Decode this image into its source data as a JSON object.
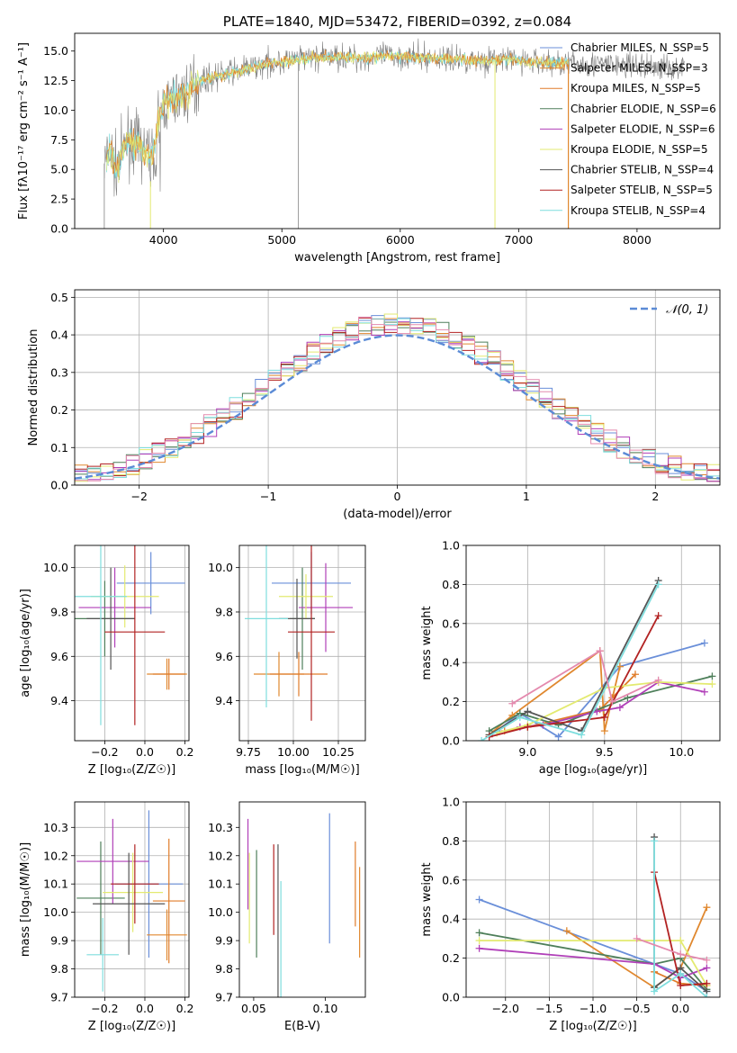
{
  "colors": {
    "series": [
      "#6a8fd9",
      "#e0882f",
      "#e07c2a",
      "#4e7f5a",
      "#b03fb8",
      "#e3ea70",
      "#555555",
      "#b22222",
      "#7fdede"
    ],
    "grid": "#b0b0b0",
    "normal": "#5b8bd6",
    "pink": "#e48aae"
  },
  "chart_data": [
    {
      "id": "spectrum",
      "type": "line",
      "title": "PLATE=1840, MJD=53472, FIBERID=0392, z=0.084",
      "xlabel": "wavelength [Angstrom, rest frame]",
      "ylabel": "Flux [fλ10⁻¹⁷ erg cm⁻² s⁻¹ A⁻¹]",
      "xlim": [
        3250,
        8700
      ],
      "ylim": [
        0,
        16.5
      ],
      "xticks": [
        4000,
        5000,
        6000,
        7000,
        8000
      ],
      "yticks": [
        0.0,
        2.5,
        5.0,
        7.5,
        10.0,
        12.5,
        15.0
      ],
      "grid": false,
      "legend_position": "top-right",
      "legend": [
        "Chabrier MILES, N_SSP=5",
        "Salpeter MILES, N_SSP=3",
        "Kroupa MILES, N_SSP=5",
        "Chabrier ELODIE, N_SSP=6",
        "Salpeter ELODIE, N_SSP=6",
        "Kroupa ELODIE, N_SSP=5",
        "Chabrier STELIB, N_SSP=4",
        "Salpeter STELIB, N_SSP=5",
        "Kroupa STELIB, N_SSP=4"
      ],
      "observed_envelope": {
        "x": [
          3500,
          3550,
          3600,
          3700,
          3800,
          3900,
          3950,
          4000,
          4100,
          4200,
          4300,
          4500,
          4700,
          4900,
          5100,
          5300,
          5500,
          5700,
          5900,
          6100,
          6300,
          6500,
          6700,
          6900,
          7100,
          7300,
          7500,
          7700,
          7900,
          8100,
          8300,
          8400
        ],
        "y": [
          5.5,
          6.5,
          5.0,
          7.5,
          7.0,
          6.0,
          8.5,
          10.5,
          11.0,
          11.5,
          12.5,
          13.0,
          13.5,
          14.0,
          14.2,
          14.5,
          14.5,
          14.4,
          14.6,
          14.5,
          14.4,
          14.3,
          14.2,
          14.3,
          14.1,
          14.0,
          13.9,
          13.9,
          13.8,
          13.7,
          13.6,
          13.7
        ]
      }
    },
    {
      "id": "residual-histogram",
      "type": "line",
      "xlabel": "(data-model)/error",
      "ylabel": "Normed distribution",
      "xlim": [
        -2.5,
        2.5
      ],
      "ylim": [
        0,
        0.52
      ],
      "xticks": [
        -2,
        -1,
        0,
        1,
        2
      ],
      "yticks": [
        0.0,
        0.1,
        0.2,
        0.3,
        0.4,
        0.5
      ],
      "grid": true,
      "legend_position": "top-right",
      "legend": [
        "𝒩(0, 1)"
      ]
    },
    {
      "id": "age-vs-z",
      "type": "scatter",
      "xlabel": "Z [log₁₀(Z/Z☉)]",
      "ylabel": "age  [log₁₀(age/yr)]",
      "xlim": [
        -0.35,
        0.22
      ],
      "ylim": [
        9.22,
        10.1
      ],
      "xticks": [
        -0.2,
        0.0,
        0.2
      ],
      "yticks": [
        9.4,
        9.6,
        9.8,
        10.0
      ],
      "grid": true,
      "points": [
        {
          "x": 0.03,
          "y": 9.93,
          "xerr": 0.17,
          "yerr": 0.14
        },
        {
          "x": 0.11,
          "y": 9.52,
          "xerr": 0.1,
          "yerr": 0.07
        },
        {
          "x": 0.12,
          "y": 9.52,
          "xerr": 0.08,
          "yerr": 0.07
        },
        {
          "x": -0.2,
          "y": 9.77,
          "xerr": 0.15,
          "yerr": 0.17
        },
        {
          "x": -0.15,
          "y": 9.82,
          "xerr": 0.18,
          "yerr": 0.18
        },
        {
          "x": -0.1,
          "y": 9.87,
          "xerr": 0.17,
          "yerr": 0.14
        },
        {
          "x": -0.17,
          "y": 9.77,
          "xerr": 0.12,
          "yerr": 0.23
        },
        {
          "x": -0.05,
          "y": 9.71,
          "xerr": 0.15,
          "yerr": 0.42
        },
        {
          "x": -0.22,
          "y": 9.87,
          "xerr": 0.13,
          "yerr": 0.58
        }
      ]
    },
    {
      "id": "age-vs-mass",
      "type": "scatter",
      "xlabel": "mass [log₁₀(M/M☉)]",
      "ylabel": "",
      "xlim": [
        9.7,
        10.4
      ],
      "ylim": [
        9.22,
        10.1
      ],
      "xticks": [
        9.75,
        10.0,
        10.25
      ],
      "yticks": [
        9.4,
        9.6,
        9.8,
        10.0
      ],
      "grid": true,
      "points": [
        {
          "x": 10.1,
          "y": 9.93,
          "xerr": 0.22,
          "yerr": 0.14
        },
        {
          "x": 9.92,
          "y": 9.52,
          "xerr": 0.14,
          "yerr": 0.1
        },
        {
          "x": 10.03,
          "y": 9.52,
          "xerr": 0.16,
          "yerr": 0.1
        },
        {
          "x": 10.05,
          "y": 9.77,
          "xerr": 0.07,
          "yerr": 0.23
        },
        {
          "x": 10.18,
          "y": 9.82,
          "xerr": 0.15,
          "yerr": 0.2
        },
        {
          "x": 10.07,
          "y": 9.87,
          "xerr": 0.15,
          "yerr": 0.1
        },
        {
          "x": 10.02,
          "y": 9.77,
          "xerr": 0.1,
          "yerr": 0.18
        },
        {
          "x": 10.1,
          "y": 9.71,
          "xerr": 0.13,
          "yerr": 0.4
        },
        {
          "x": 9.85,
          "y": 9.77,
          "xerr": 0.12,
          "yerr": 0.4
        }
      ]
    },
    {
      "id": "weight-vs-age",
      "type": "line",
      "xlabel": "age  [log₁₀(age/yr)]",
      "ylabel": "mass weight",
      "xlim": [
        8.6,
        10.25
      ],
      "ylim": [
        0,
        1.0
      ],
      "xticks": [
        9.0,
        9.5,
        10.0
      ],
      "yticks": [
        0.0,
        0.2,
        0.4,
        0.6,
        0.8,
        1.0
      ],
      "grid": true,
      "series": [
        {
          "x": [
            8.8,
            8.95,
            9.2,
            9.6,
            10.15
          ],
          "y": [
            0.05,
            0.14,
            0.02,
            0.38,
            0.5
          ]
        },
        {
          "x": [
            8.75,
            8.9,
            9.47,
            9.5,
            9.6
          ],
          "y": [
            0.03,
            0.13,
            0.46,
            0.05,
            0.38
          ]
        },
        {
          "x": [
            8.85,
            9.0,
            9.47,
            9.55,
            9.7
          ],
          "y": [
            0.05,
            0.07,
            0.16,
            0.22,
            0.34
          ]
        },
        {
          "x": [
            8.75,
            8.95,
            9.2,
            9.65,
            10.2
          ],
          "y": [
            0.05,
            0.14,
            0.08,
            0.22,
            0.33
          ]
        },
        {
          "x": [
            8.95,
            9.1,
            9.45,
            9.6,
            9.85,
            10.15
          ],
          "y": [
            0.07,
            0.08,
            0.15,
            0.17,
            0.3,
            0.25
          ]
        },
        {
          "x": [
            8.8,
            9.0,
            9.5,
            9.85,
            10.2
          ],
          "y": [
            0.04,
            0.08,
            0.27,
            0.3,
            0.29
          ]
        },
        {
          "x": [
            8.75,
            9.0,
            9.35,
            9.85
          ],
          "y": [
            0.03,
            0.15,
            0.05,
            0.82
          ]
        },
        {
          "x": [
            8.75,
            9.0,
            9.5,
            9.85
          ],
          "y": [
            0.02,
            0.07,
            0.12,
            0.64
          ]
        },
        {
          "x": [
            8.7,
            8.95,
            9.35,
            9.85
          ],
          "y": [
            0.0,
            0.12,
            0.03,
            0.8
          ]
        },
        {
          "x": [
            8.9,
            9.47,
            9.55,
            9.85
          ],
          "y": [
            0.19,
            0.46,
            0.2,
            0.31
          ]
        }
      ]
    },
    {
      "id": "mass-vs-z",
      "type": "scatter",
      "xlabel": "Z [log₁₀(Z/Z☉)]",
      "ylabel": "mass [log₁₀(M/M☉)]",
      "xlim": [
        -0.35,
        0.22
      ],
      "ylim": [
        9.7,
        10.39
      ],
      "xticks": [
        -0.2,
        0.0,
        0.2
      ],
      "yticks": [
        9.7,
        9.8,
        9.9,
        10.0,
        10.1,
        10.2,
        10.3
      ],
      "grid": true,
      "points": [
        {
          "x": 0.02,
          "y": 10.1,
          "xerr": 0.17,
          "yerr": 0.26
        },
        {
          "x": 0.11,
          "y": 9.92,
          "xerr": 0.1,
          "yerr": 0.09
        },
        {
          "x": 0.12,
          "y": 10.04,
          "xerr": 0.08,
          "yerr": 0.22
        },
        {
          "x": -0.22,
          "y": 10.05,
          "xerr": 0.12,
          "yerr": 0.2
        },
        {
          "x": -0.16,
          "y": 10.18,
          "xerr": 0.18,
          "yerr": 0.15
        },
        {
          "x": -0.06,
          "y": 10.07,
          "xerr": 0.15,
          "yerr": 0.14
        },
        {
          "x": -0.08,
          "y": 10.03,
          "xerr": 0.18,
          "yerr": 0.18
        },
        {
          "x": -0.05,
          "y": 10.1,
          "xerr": 0.12,
          "yerr": 0.14
        },
        {
          "x": -0.21,
          "y": 9.85,
          "xerr": 0.08,
          "yerr": 0.13
        }
      ]
    },
    {
      "id": "mass-vs-ebv",
      "type": "scatter",
      "xlabel": "E(B-V)",
      "ylabel": "",
      "xlim": [
        0.04,
        0.128
      ],
      "ylim": [
        9.7,
        10.39
      ],
      "xticks": [
        0.05,
        0.1
      ],
      "yticks": [
        9.7,
        9.8,
        9.9,
        10.0,
        10.1,
        10.2,
        10.3
      ],
      "grid": false,
      "points": [
        {
          "x": 0.103,
          "y": 10.12,
          "yerr": 0.23
        },
        {
          "x": 0.124,
          "y": 10.0,
          "yerr": 0.16
        },
        {
          "x": 0.121,
          "y": 10.1,
          "yerr": 0.15
        },
        {
          "x": 0.052,
          "y": 10.03,
          "yerr": 0.19
        },
        {
          "x": 0.046,
          "y": 10.17,
          "yerr": 0.16
        },
        {
          "x": 0.047,
          "y": 10.05,
          "yerr": 0.16
        },
        {
          "x": 0.067,
          "y": 9.97,
          "yerr": 0.27
        },
        {
          "x": 0.064,
          "y": 10.08,
          "yerr": 0.16
        },
        {
          "x": 0.069,
          "y": 9.87,
          "yerr": 0.24
        }
      ]
    },
    {
      "id": "weight-vs-z",
      "type": "line",
      "xlabel": "Z [log₁₀(Z/Z☉)]",
      "ylabel": "mass weight",
      "xlim": [
        -2.45,
        0.45
      ],
      "ylim": [
        0,
        1.0
      ],
      "xticks": [
        -2.0,
        -1.5,
        -1.0,
        -0.5,
        0.0
      ],
      "yticks": [
        0.0,
        0.2,
        0.4,
        0.6,
        0.8,
        1.0
      ],
      "grid": true,
      "series": [
        {
          "x": [
            -2.3,
            -0.3,
            0.0,
            0.3
          ],
          "y": [
            0.5,
            0.17,
            0.12,
            0.03
          ]
        },
        {
          "x": [
            -1.3,
            -0.3,
            0.0,
            0.3
          ],
          "y": [
            0.34,
            0.05,
            0.15,
            0.46
          ]
        },
        {
          "x": [
            -0.3,
            0.0,
            0.3
          ],
          "y": [
            0.13,
            0.07,
            0.06
          ]
        },
        {
          "x": [
            -2.3,
            -0.3,
            0.0,
            0.3
          ],
          "y": [
            0.33,
            0.17,
            0.2,
            0.04
          ]
        },
        {
          "x": [
            -2.3,
            -0.3,
            0.0,
            0.3
          ],
          "y": [
            0.25,
            0.17,
            0.1,
            0.15
          ]
        },
        {
          "x": [
            -2.3,
            0.0,
            0.3
          ],
          "y": [
            0.29,
            0.29,
            0.06
          ]
        },
        {
          "x": [
            -0.3,
            -0.3,
            0.0,
            0.3
          ],
          "y": [
            0.82,
            0.05,
            0.15,
            0.03
          ]
        },
        {
          "x": [
            -0.3,
            0.0,
            0.3
          ],
          "y": [
            0.64,
            0.06,
            0.07
          ]
        },
        {
          "x": [
            -0.3,
            -0.3,
            0.0,
            0.3
          ],
          "y": [
            0.8,
            0.03,
            0.12,
            0.0
          ]
        },
        {
          "x": [
            -0.5,
            0.0,
            0.3
          ],
          "y": [
            0.3,
            0.22,
            0.19
          ]
        }
      ]
    }
  ]
}
